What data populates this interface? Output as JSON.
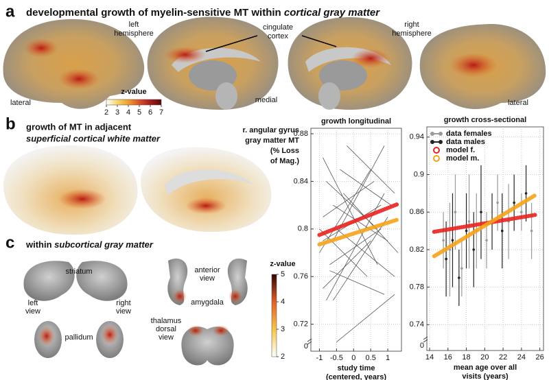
{
  "panels": {
    "a": {
      "letter": "a",
      "title": "developmental growth of myelin-sensitive MT within ",
      "title_italic": "cortical gray matter",
      "left_hemisphere": [
        "left",
        "hemisphere"
      ],
      "cingulate": [
        "cingulate",
        "cortex"
      ],
      "right_hemisphere": [
        "right",
        "hemisphere"
      ],
      "lateral_left": "lateral",
      "medial": "medial",
      "lateral_right": "lateral",
      "colorbar": {
        "label": "z-value",
        "ticks": [
          2,
          3,
          4,
          5,
          6,
          7
        ],
        "colors": [
          "#ffffff",
          "#f6d66a",
          "#efa02c",
          "#dc4f28",
          "#a61c1c",
          "#5a0808"
        ]
      }
    },
    "b": {
      "letter": "b",
      "title": "growth of MT in adjacent",
      "title_italic": "superficial cortical white matter"
    },
    "c": {
      "letter": "c",
      "title": "within ",
      "title_italic": "subcortical gray matter",
      "striatum": "striatum",
      "left_view": [
        "left",
        "view"
      ],
      "right_view": [
        "right",
        "view"
      ],
      "pallidum": "pallidum",
      "anterior_view": [
        "anterior",
        "view"
      ],
      "amygdala": "amygdala",
      "thalamus": [
        "thalamus",
        "dorsal",
        "view"
      ],
      "colorbar": {
        "label": "z-value",
        "ticks": [
          2,
          3,
          4,
          5
        ],
        "colors": [
          "#ffffff",
          "#f6c64a",
          "#e0602a",
          "#300404"
        ]
      }
    }
  },
  "y_axis_label": [
    "r. angular gyrus",
    "gray matter MT",
    "(% Loss",
    "of Mag.)"
  ],
  "chart_data": [
    {
      "type": "line",
      "title": "growth longitudinal",
      "xlabel": [
        "study time",
        "(centered, years)"
      ],
      "xlim": [
        -1.25,
        1.4
      ],
      "xticks": [
        -1,
        -0.5,
        0,
        0.5,
        1
      ],
      "ylim": [
        0.71,
        0.88
      ],
      "yticks": [
        0.72,
        0.76,
        0.8,
        0.84,
        0.88
      ],
      "y_break_tick": 0,
      "grid": true,
      "segment_color": "#555",
      "segments": [
        {
          "x": [
            -0.9,
            0.7
          ],
          "y": [
            0.86,
            0.77
          ]
        },
        {
          "x": [
            -0.8,
            0.9
          ],
          "y": [
            0.74,
            0.83
          ]
        },
        {
          "x": [
            -0.6,
            1.0
          ],
          "y": [
            0.82,
            0.79
          ]
        },
        {
          "x": [
            -1.0,
            0.5
          ],
          "y": [
            0.78,
            0.85
          ]
        },
        {
          "x": [
            -0.5,
            1.2
          ],
          "y": [
            0.8,
            0.76
          ]
        },
        {
          "x": [
            -0.9,
            0.6
          ],
          "y": [
            0.81,
            0.84
          ]
        },
        {
          "x": [
            -0.7,
            0.8
          ],
          "y": [
            0.77,
            0.8
          ]
        },
        {
          "x": [
            -0.4,
            1.1
          ],
          "y": [
            0.85,
            0.82
          ]
        },
        {
          "x": [
            -0.9,
            0.5
          ],
          "y": [
            0.75,
            0.79
          ]
        },
        {
          "x": [
            -0.6,
            0.9
          ],
          "y": [
            0.79,
            0.87
          ]
        },
        {
          "x": [
            -0.3,
            1.3
          ],
          "y": [
            0.83,
            0.78
          ]
        },
        {
          "x": [
            -0.8,
            0.7
          ],
          "y": [
            0.84,
            0.8
          ]
        },
        {
          "x": [
            -0.7,
            0.9
          ],
          "y": [
            0.765,
            0.745
          ]
        },
        {
          "x": [
            -0.5,
            1.2
          ],
          "y": [
            0.705,
            0.745
          ]
        },
        {
          "x": [
            -1.0,
            0.4
          ],
          "y": [
            0.8,
            0.76
          ]
        },
        {
          "x": [
            -0.6,
            1.0
          ],
          "y": [
            0.74,
            0.81
          ]
        },
        {
          "x": [
            -0.2,
            1.2
          ],
          "y": [
            0.87,
            0.83
          ]
        },
        {
          "x": [
            -0.9,
            0.8
          ],
          "y": [
            0.79,
            0.82
          ]
        }
      ],
      "model_lines": [
        {
          "color": "#e8231e",
          "x": [
            -1,
            1.3
          ],
          "y": [
            0.795,
            0.821
          ]
        },
        {
          "color": "#f5a21b",
          "x": [
            -1,
            1.3
          ],
          "y": [
            0.787,
            0.808
          ]
        }
      ]
    },
    {
      "type": "scatter",
      "title": "growth cross-sectional",
      "xlabel": [
        "mean age over all",
        "visits (years)"
      ],
      "xlim": [
        13.7,
        26.4
      ],
      "xticks": [
        14,
        16,
        18,
        20,
        22,
        24,
        26
      ],
      "ylim": [
        0.73,
        0.945
      ],
      "yticks": [
        0.74,
        0.78,
        0.82,
        0.86,
        0.9,
        0.94
      ],
      "y_break_tick": 0,
      "grid": true,
      "legend": "upper left",
      "series": [
        {
          "name": "data females",
          "color": "#9a9a9a",
          "marker": "filled",
          "x": [
            15.5,
            16.2,
            16.8,
            17.5,
            18.3,
            19.1,
            20.2,
            21.4,
            22.6,
            24.0,
            25.1
          ],
          "y": [
            0.83,
            0.82,
            0.86,
            0.8,
            0.85,
            0.84,
            0.83,
            0.87,
            0.85,
            0.86,
            0.84
          ],
          "errors": [
            0.03,
            0.05,
            0.04,
            0.03,
            0.05,
            0.04,
            0.03,
            0.03,
            0.04,
            0.02,
            0.03
          ]
        },
        {
          "name": "data males",
          "color": "#222222",
          "marker": "filled",
          "x": [
            15.8,
            16.5,
            17.2,
            18.0,
            18.8,
            19.6,
            20.8,
            21.9,
            23.2,
            24.5
          ],
          "y": [
            0.81,
            0.83,
            0.79,
            0.84,
            0.82,
            0.86,
            0.85,
            0.84,
            0.87,
            0.88
          ],
          "errors": [
            0.04,
            0.05,
            0.03,
            0.04,
            0.04,
            0.05,
            0.03,
            0.04,
            0.03,
            0.03
          ]
        },
        {
          "name": "model f.",
          "color": "#e8231e",
          "marker": "open",
          "x": [
            14.5,
            25.5
          ],
          "y": [
            0.839,
            0.857
          ]
        },
        {
          "name": "model m.",
          "color": "#f5a21b",
          "marker": "open",
          "x": [
            14.5,
            25.5
          ],
          "y": [
            0.813,
            0.878
          ]
        }
      ]
    }
  ]
}
